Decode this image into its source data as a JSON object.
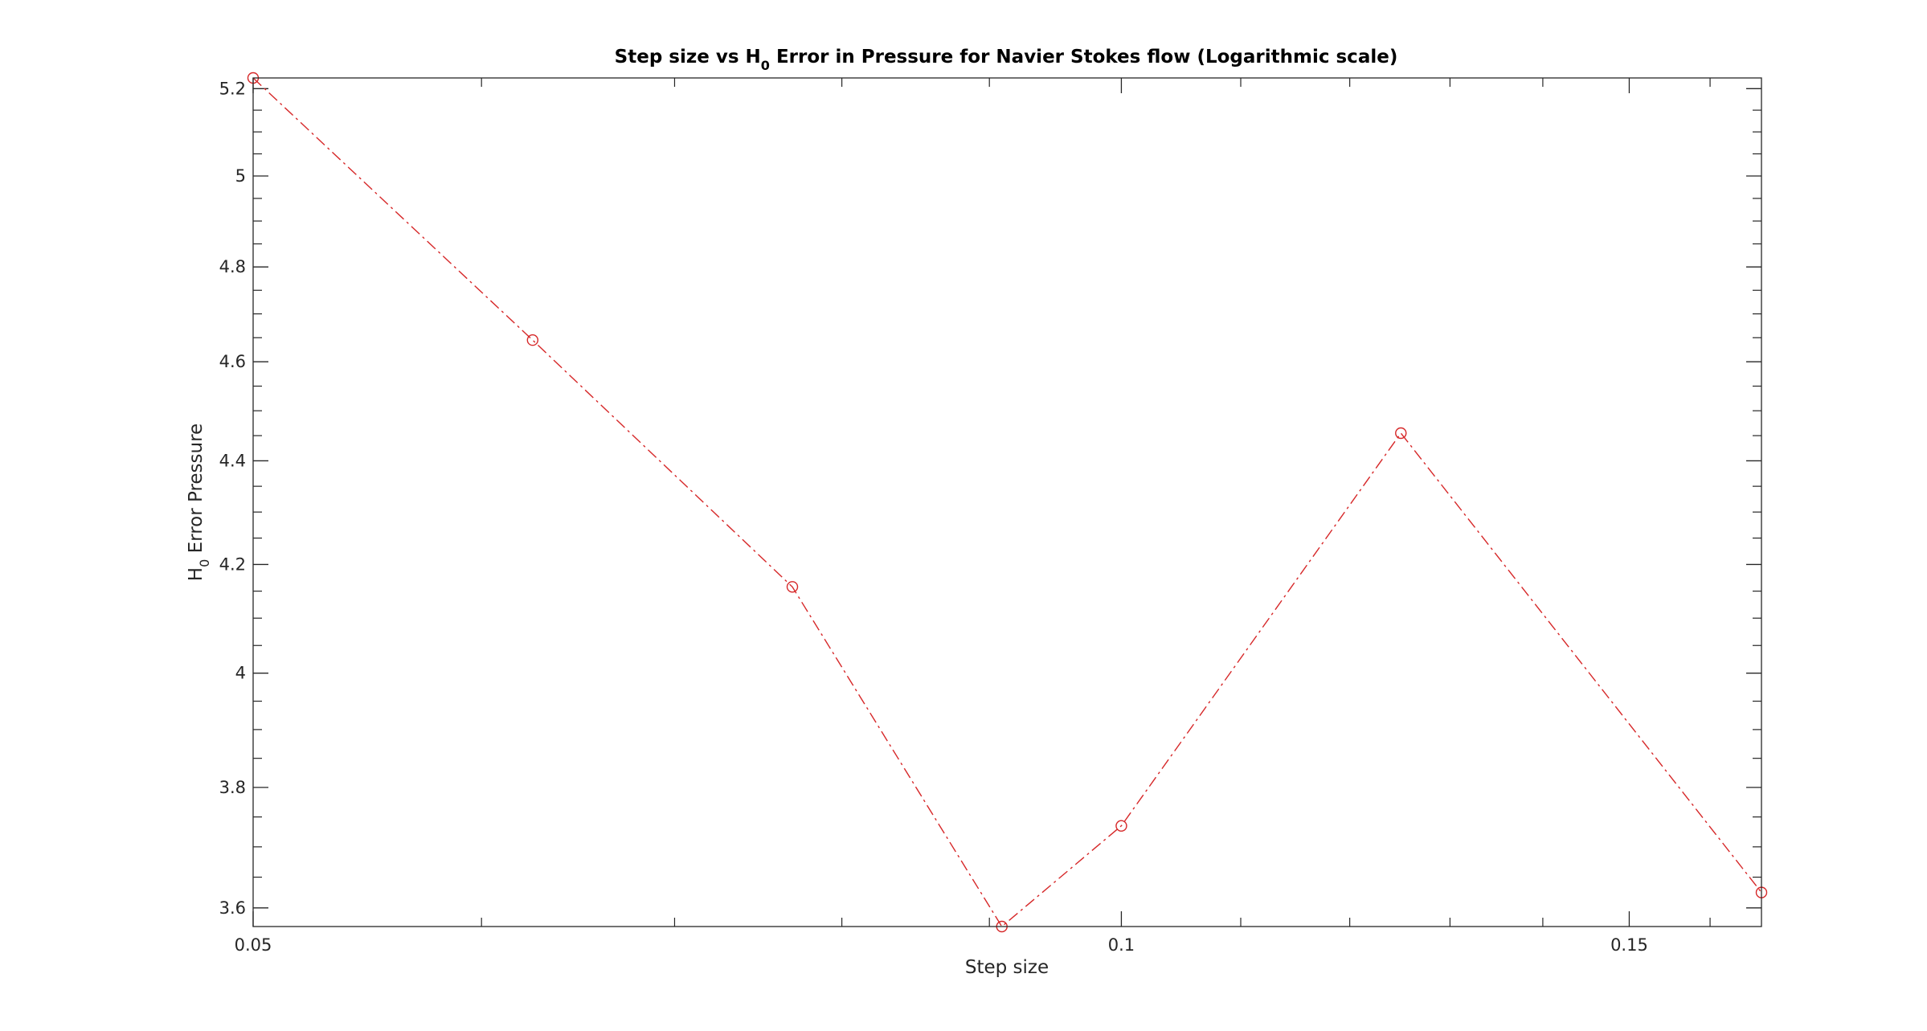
{
  "chart_data": {
    "type": "line",
    "title": {
      "prefix": "Step size vs H",
      "subscript": "0",
      "suffix": " Error in Pressure for Navier Stokes flow (Logarithmic scale)"
    },
    "xlabel": "Step size",
    "ylabel": {
      "prefix": "H",
      "subscript": "0",
      "suffix": " Error Pressure"
    },
    "xscale": "log",
    "yscale": "log",
    "xlim": [
      0.05,
      0.1667
    ],
    "ylim": [
      3.57,
      5.225
    ],
    "xticks": [
      {
        "value": 0.05,
        "label": "0.05"
      },
      {
        "value": 0.1,
        "label": "0.1"
      },
      {
        "value": 0.15,
        "label": "0.15"
      }
    ],
    "yticks": [
      {
        "value": 3.6,
        "label": "3.6"
      },
      {
        "value": 3.8,
        "label": "3.8"
      },
      {
        "value": 4.0,
        "label": "4"
      },
      {
        "value": 4.2,
        "label": "4.2"
      },
      {
        "value": 4.4,
        "label": "4.4"
      },
      {
        "value": 4.6,
        "label": "4.6"
      },
      {
        "value": 4.8,
        "label": "4.8"
      },
      {
        "value": 5.0,
        "label": "5"
      },
      {
        "value": 5.2,
        "label": "5.2"
      }
    ],
    "grid": false,
    "series": [
      {
        "color": "#d62728",
        "line_style": "dash-dot",
        "marker": "circle",
        "x": [
          0.05,
          0.0625,
          0.0769,
          0.0909,
          0.1,
          0.125,
          0.1667
        ],
        "y": [
          5.225,
          4.645,
          4.158,
          3.57,
          3.735,
          4.455,
          3.625
        ]
      }
    ]
  }
}
